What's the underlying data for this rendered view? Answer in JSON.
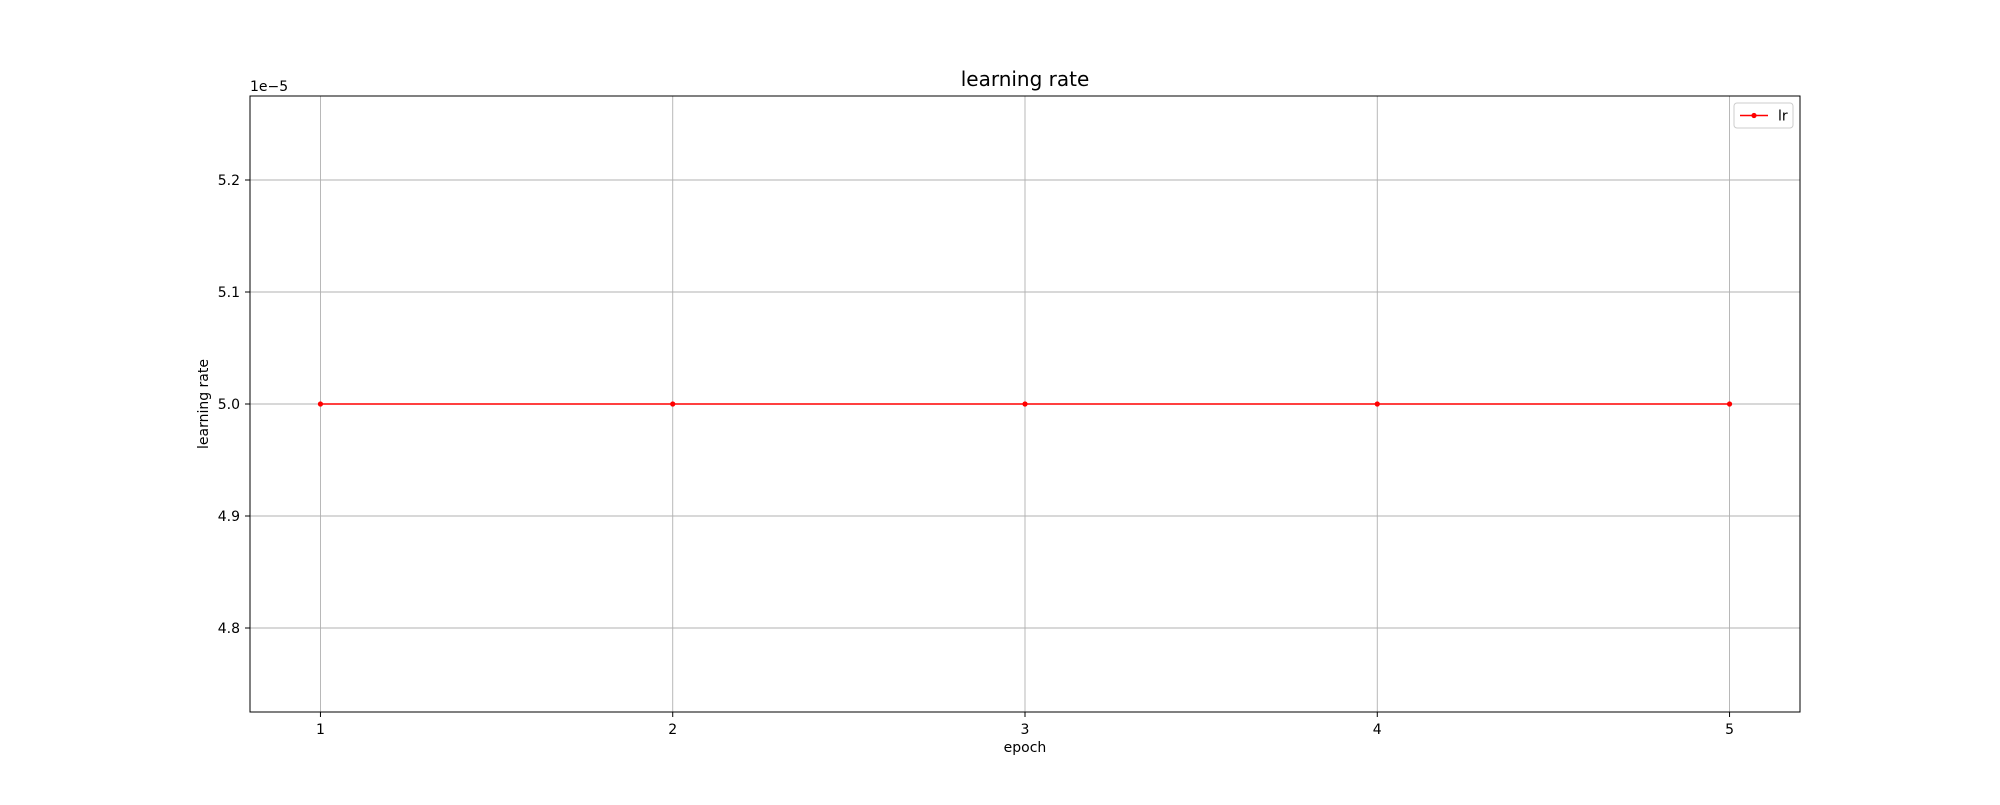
{
  "chart_data": {
    "type": "line",
    "title": "learning rate",
    "xlabel": "epoch",
    "ylabel": "learning rate",
    "y_offset_label": "1e−5",
    "x": [
      1,
      2,
      3,
      4,
      5
    ],
    "x_ticks": [
      1,
      2,
      3,
      4,
      5
    ],
    "x_tick_labels": [
      "1",
      "2",
      "3",
      "4",
      "5"
    ],
    "xlim": [
      0.8,
      5.2
    ],
    "y_scale_factor": 1e-05,
    "y_ticks": [
      4.8e-05,
      4.9e-05,
      5e-05,
      5.1e-05,
      5.2e-05
    ],
    "y_tick_labels": [
      "4.8",
      "4.9",
      "5.0",
      "5.1",
      "5.2"
    ],
    "ylim": [
      4.725e-05,
      5.275e-05
    ],
    "grid": true,
    "legend_position": "top-right",
    "series": [
      {
        "name": "lr",
        "color": "#ff0000",
        "marker": "point",
        "values": [
          5e-05,
          5e-05,
          5e-05,
          5e-05,
          5e-05
        ]
      }
    ]
  }
}
